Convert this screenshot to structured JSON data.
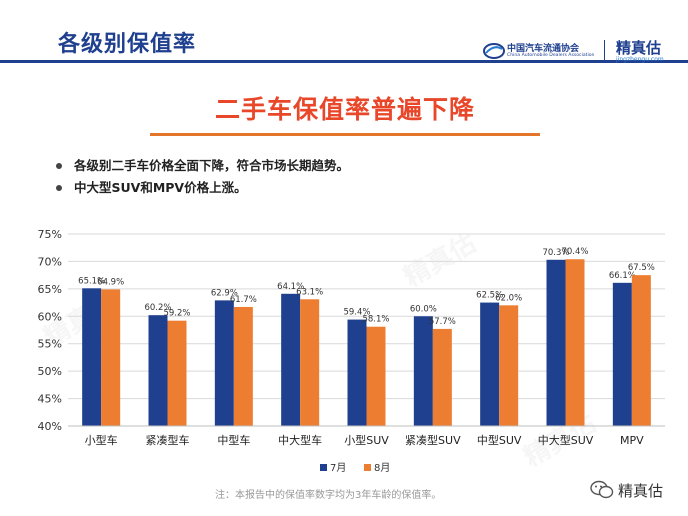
{
  "header": {
    "title": "各级别保值率",
    "cada_name_cn": "中国汽车流通协会",
    "cada_name_en": "China Automobile Dealers Association",
    "jzg_name": "精真估",
    "jzg_url": "jingzhengu.com"
  },
  "banner": {
    "title": "二手车保值率普遍下降"
  },
  "bullets": [
    "各级别二手车价格全面下降，符合市场长期趋势。",
    "中大型SUV和MPV价格上涨。"
  ],
  "footnote": "注：本报告中的保值率数字均为3年车龄的保值率。",
  "wechat_label": "精真估",
  "watermark_text": "精真估",
  "colors": {
    "brand": "#1f3f8f",
    "series_july": "#1f3f8f",
    "series_august": "#ed7d31",
    "banner": "#e8472a"
  },
  "chart_data": {
    "type": "bar",
    "categories": [
      "小型车",
      "紧凑型车",
      "中型车",
      "中大型车",
      "小型SUV",
      "紧凑型SUV",
      "中型SUV",
      "中大型SUV",
      "MPV"
    ],
    "series": [
      {
        "name": "7月",
        "values": [
          65.1,
          60.2,
          62.9,
          64.1,
          59.4,
          60.0,
          62.5,
          70.3,
          66.1
        ],
        "labels": [
          "65.1%",
          "60.2%",
          "62.9%",
          "64.1%",
          "59.4%",
          "60.0%",
          "62.5%",
          "70.3%",
          "66.1%"
        ]
      },
      {
        "name": "8月",
        "values": [
          64.9,
          59.2,
          61.7,
          63.1,
          58.1,
          57.7,
          62.0,
          70.4,
          67.5
        ],
        "labels": [
          "64.9%",
          "59.2%",
          "61.7%",
          "63.1%",
          "58.1%",
          "57.7%",
          "62.0%",
          "70.4%",
          "67.5%"
        ]
      }
    ],
    "ylim": [
      40,
      75
    ],
    "yticks": [
      40,
      45,
      50,
      55,
      60,
      65,
      70,
      75
    ],
    "ytick_labels": [
      "40%",
      "45%",
      "50%",
      "55%",
      "60%",
      "65%",
      "70%",
      "75%"
    ],
    "grid": true,
    "legend": "bottom-center"
  }
}
